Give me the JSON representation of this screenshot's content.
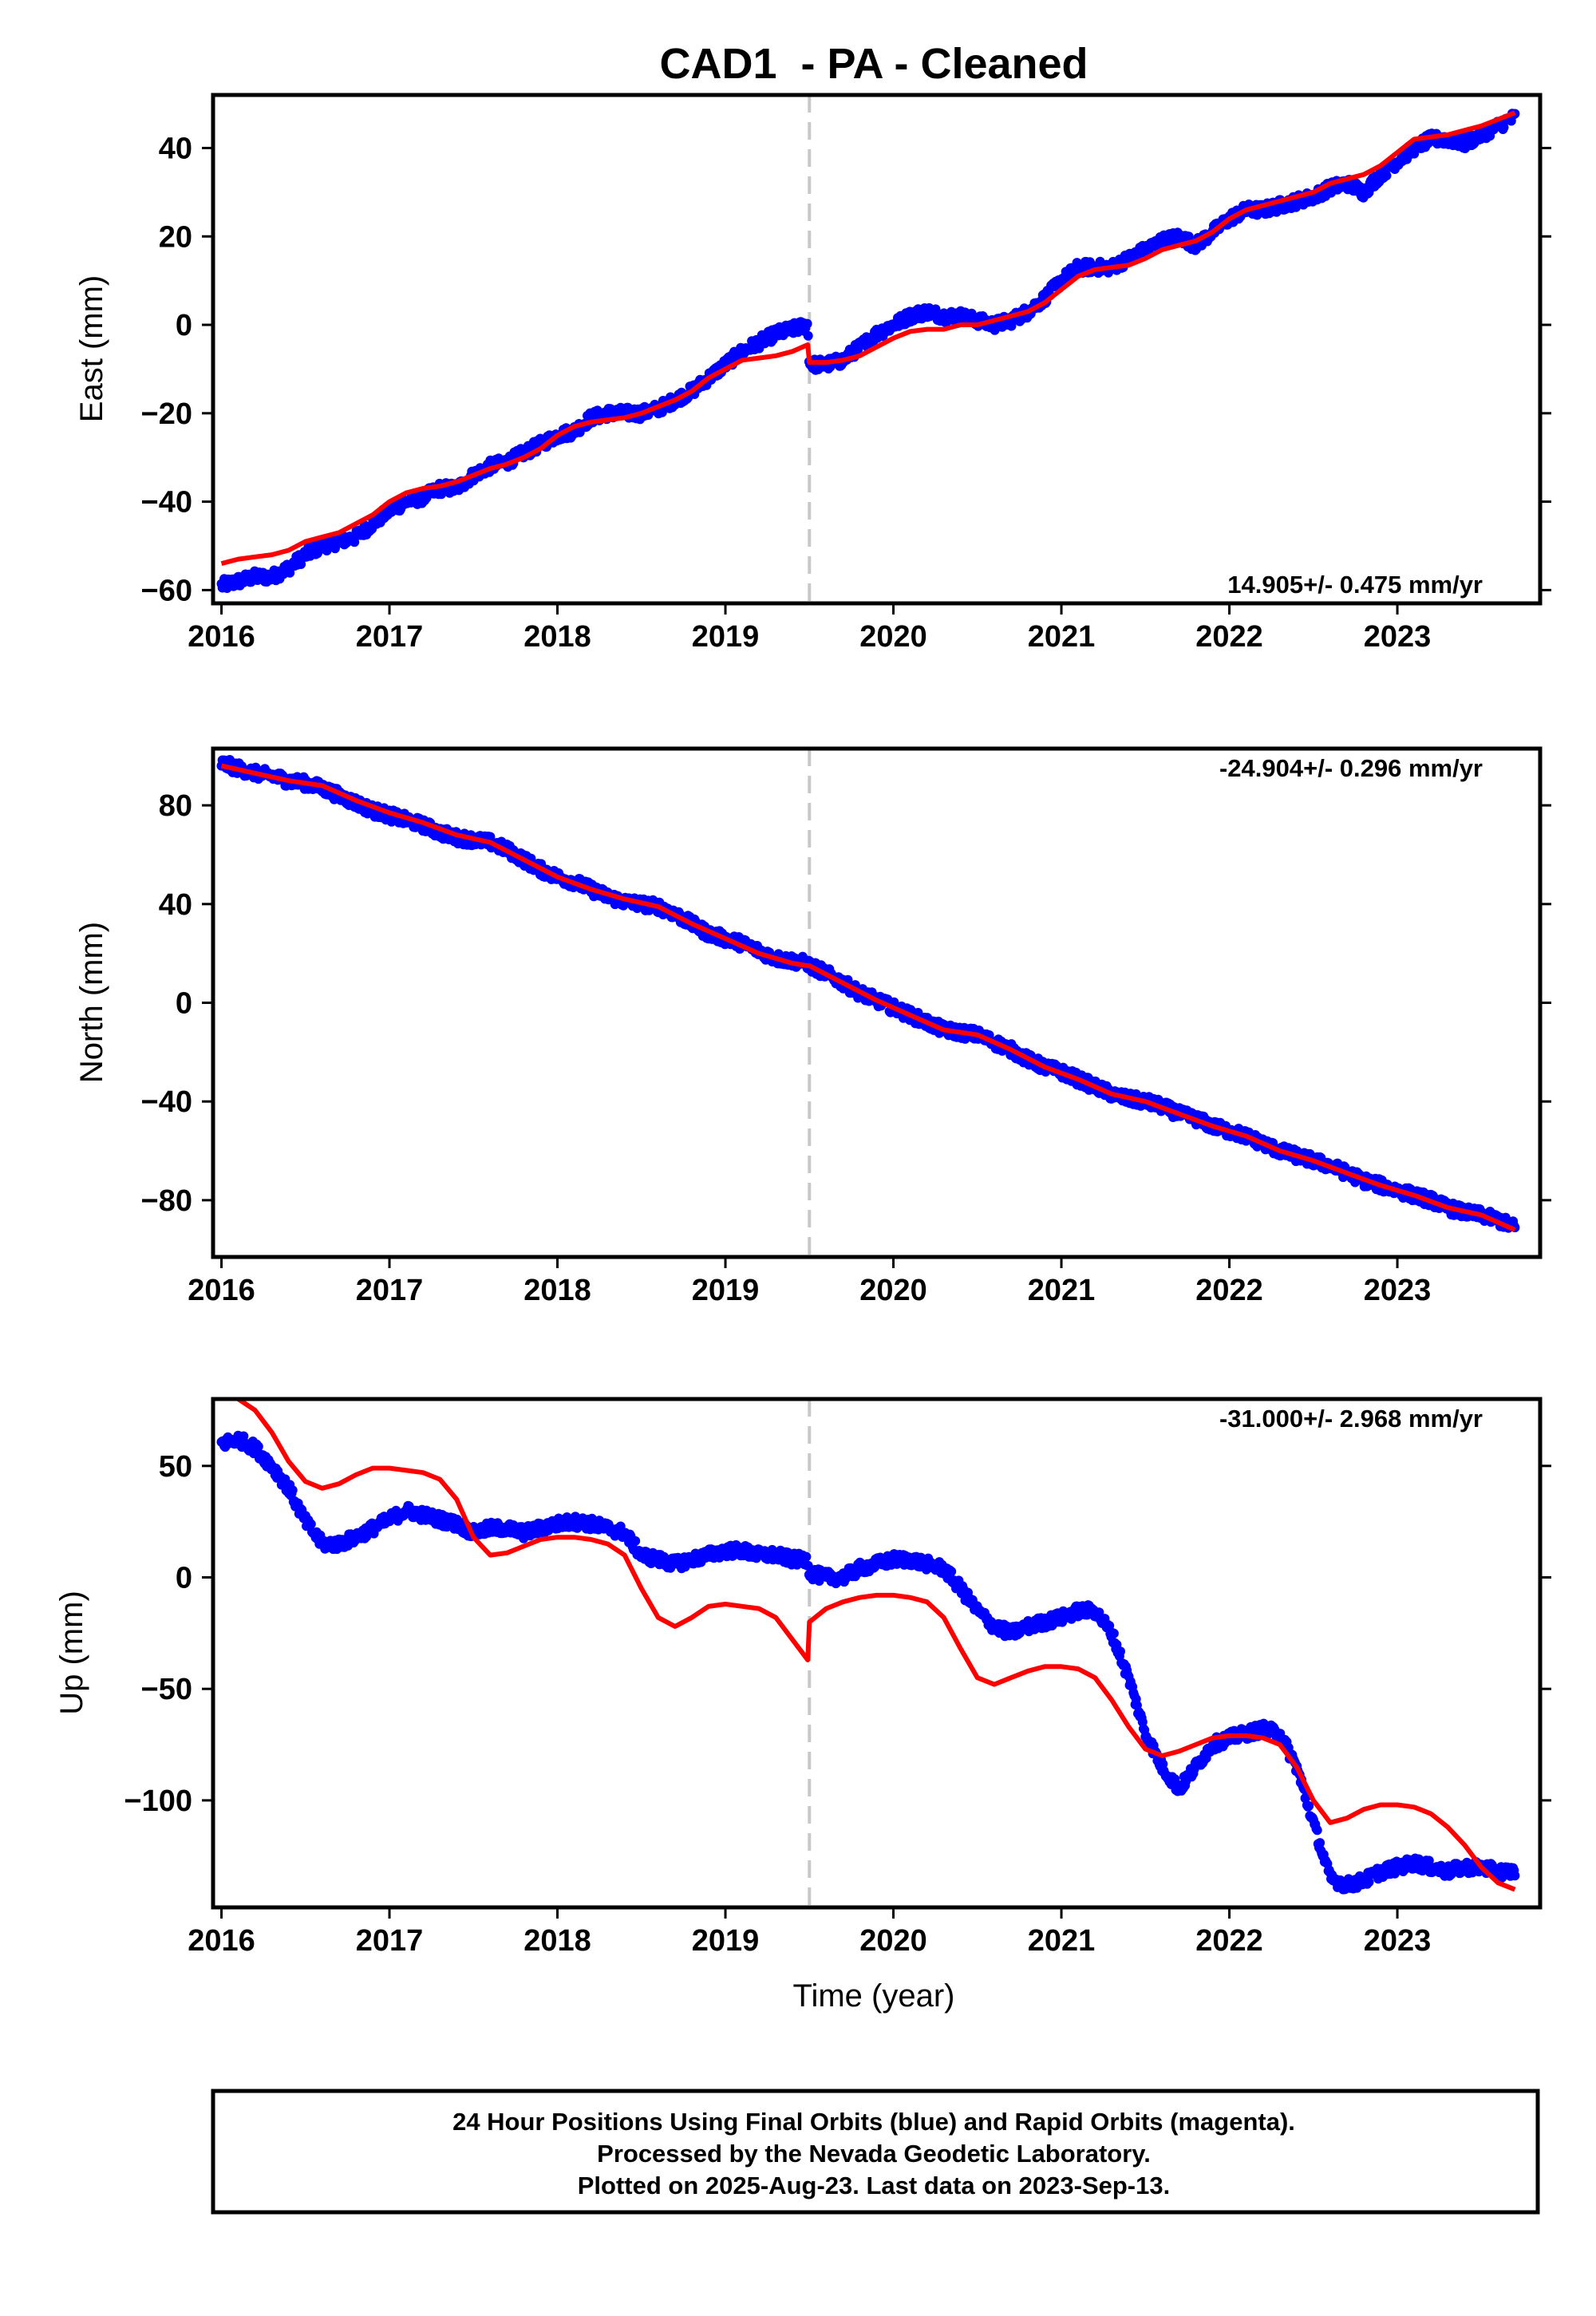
{
  "title": "CAD1  - PA - Cleaned",
  "colors": {
    "data": "#0000ff",
    "fit": "#ff0000",
    "event": "#c8c8c8",
    "frame": "#000000"
  },
  "chart_data": [
    {
      "type": "scatter",
      "ylabel": "East (mm)",
      "xlabel": "",
      "xlim": [
        2015.95,
        2023.85
      ],
      "ylim": [
        -63,
        52
      ],
      "x_ticks": [
        "2016",
        "2017",
        "2018",
        "2019",
        "2020",
        "2021",
        "2022",
        "2023"
      ],
      "y_ticks": [
        "−60",
        "−40",
        "−20",
        "0",
        "20",
        "40"
      ],
      "rate": "14.905+/- 0.475 mm/yr",
      "rate_position": "bottom-right",
      "event_line_x": 2019.5,
      "series": [
        {
          "role": "observed",
          "x": [
            2016.0,
            2016.1,
            2016.2,
            2016.3,
            2016.4,
            2016.5,
            2016.6,
            2016.7,
            2016.8,
            2016.9,
            2017.0,
            2017.1,
            2017.2,
            2017.3,
            2017.4,
            2017.5,
            2017.6,
            2017.7,
            2017.8,
            2017.9,
            2018.0,
            2018.1,
            2018.2,
            2018.3,
            2018.4,
            2018.5,
            2018.6,
            2018.7,
            2018.8,
            2018.9,
            2019.0,
            2019.1,
            2019.2,
            2019.3,
            2019.4,
            2019.49,
            2019.5,
            2019.6,
            2019.7,
            2019.8,
            2019.9,
            2020.0,
            2020.1,
            2020.2,
            2020.3,
            2020.4,
            2020.5,
            2020.6,
            2020.7,
            2020.8,
            2020.9,
            2021.0,
            2021.1,
            2021.2,
            2021.3,
            2021.4,
            2021.5,
            2021.6,
            2021.7,
            2021.8,
            2021.9,
            2022.0,
            2022.1,
            2022.2,
            2022.3,
            2022.4,
            2022.5,
            2022.6,
            2022.7,
            2022.8,
            2022.9,
            2023.0,
            2023.1,
            2023.2,
            2023.3,
            2023.4,
            2023.5,
            2023.6,
            2023.7
          ],
          "y": [
            -59,
            -58,
            -57,
            -57,
            -55,
            -52,
            -50,
            -49,
            -48,
            -45,
            -42,
            -40,
            -39,
            -37,
            -37,
            -34,
            -32,
            -31,
            -29,
            -27,
            -25,
            -24,
            -21,
            -20,
            -20,
            -20,
            -19,
            -17,
            -15,
            -12,
            -9,
            -6,
            -4,
            -2,
            -1,
            0,
            -9,
            -9,
            -8,
            -5,
            -2,
            0,
            2,
            3,
            2,
            2,
            1,
            0,
            1,
            3,
            6,
            10,
            13,
            13,
            13,
            15,
            17,
            19,
            20,
            18,
            21,
            24,
            26,
            26,
            27,
            28,
            29,
            31,
            32,
            30,
            34,
            37,
            40,
            42,
            42,
            41,
            43,
            45,
            47
          ]
        },
        {
          "role": "model",
          "x": [
            2016.0,
            2016.1,
            2016.2,
            2016.3,
            2016.4,
            2016.5,
            2016.6,
            2016.7,
            2016.8,
            2016.9,
            2017.0,
            2017.1,
            2017.2,
            2017.3,
            2017.4,
            2017.5,
            2017.6,
            2017.7,
            2017.8,
            2017.9,
            2018.0,
            2018.1,
            2018.2,
            2018.3,
            2018.4,
            2018.5,
            2018.6,
            2018.7,
            2018.8,
            2018.9,
            2019.0,
            2019.1,
            2019.2,
            2019.3,
            2019.4,
            2019.49,
            2019.5,
            2019.6,
            2019.7,
            2019.8,
            2019.9,
            2020.0,
            2020.1,
            2020.2,
            2020.3,
            2020.4,
            2020.5,
            2020.6,
            2020.7,
            2020.8,
            2020.9,
            2021.0,
            2021.1,
            2021.2,
            2021.3,
            2021.4,
            2021.5,
            2021.6,
            2021.7,
            2021.8,
            2021.9,
            2022.0,
            2022.1,
            2022.2,
            2022.3,
            2022.4,
            2022.5,
            2022.6,
            2022.7,
            2022.8,
            2022.9,
            2023.0,
            2023.1,
            2023.2,
            2023.3,
            2023.4,
            2023.5,
            2023.6,
            2023.7
          ],
          "y": [
            -54,
            -53,
            -52.5,
            -52,
            -51,
            -49,
            -48,
            -47,
            -45,
            -43,
            -40,
            -38,
            -37,
            -36.5,
            -35.5,
            -34,
            -32.5,
            -31.5,
            -30,
            -28,
            -25,
            -23,
            -22,
            -21.5,
            -21,
            -20,
            -18.5,
            -17,
            -15,
            -12,
            -10,
            -8,
            -7.5,
            -7,
            -6,
            -4.5,
            -8.5,
            -8.5,
            -8,
            -7,
            -5,
            -3,
            -1.5,
            -1,
            -1,
            0,
            0,
            1,
            2,
            3,
            5,
            8,
            11,
            12.5,
            13,
            13.5,
            15,
            17,
            18,
            19,
            21,
            24,
            26,
            27,
            28,
            29,
            30,
            32,
            33,
            34,
            36,
            39,
            42,
            42.5,
            43,
            44,
            45,
            46.5,
            48
          ]
        }
      ]
    },
    {
      "type": "scatter",
      "ylabel": "North (mm)",
      "xlabel": "",
      "xlim": [
        2015.95,
        2023.85
      ],
      "ylim": [
        -103,
        103
      ],
      "x_ticks": [
        "2016",
        "2017",
        "2018",
        "2019",
        "2020",
        "2021",
        "2022",
        "2023"
      ],
      "y_ticks": [
        "−80",
        "−40",
        "0",
        "40",
        "80"
      ],
      "rate": "-24.904+/- 0.296 mm/yr",
      "rate_position": "top-right",
      "event_line_x": 2019.5,
      "series": [
        {
          "role": "observed",
          "x": [
            2016.0,
            2016.1,
            2016.2,
            2016.3,
            2016.4,
            2016.5,
            2016.6,
            2016.7,
            2016.8,
            2016.9,
            2017.0,
            2017.1,
            2017.2,
            2017.3,
            2017.4,
            2017.5,
            2017.6,
            2017.7,
            2017.8,
            2017.9,
            2018.0,
            2018.1,
            2018.2,
            2018.3,
            2018.4,
            2018.5,
            2018.6,
            2018.7,
            2018.8,
            2018.9,
            2019.0,
            2019.1,
            2019.2,
            2019.3,
            2019.4,
            2019.49,
            2019.5,
            2019.6,
            2019.7,
            2019.8,
            2019.9,
            2020.0,
            2020.1,
            2020.2,
            2020.3,
            2020.4,
            2020.5,
            2020.6,
            2020.7,
            2020.8,
            2020.9,
            2021.0,
            2021.1,
            2021.2,
            2021.3,
            2021.4,
            2021.5,
            2021.6,
            2021.7,
            2021.8,
            2021.9,
            2022.0,
            2022.1,
            2022.2,
            2022.3,
            2022.4,
            2022.5,
            2022.6,
            2022.7,
            2022.8,
            2022.9,
            2023.0,
            2023.1,
            2023.2,
            2023.3,
            2023.4,
            2023.5,
            2023.6,
            2023.7
          ],
          "y": [
            97,
            95,
            93,
            92,
            90,
            89,
            87,
            84,
            81,
            78,
            76,
            74,
            72,
            69,
            67,
            66,
            65,
            62,
            58,
            54,
            51,
            49,
            46,
            43,
            41,
            40,
            39,
            36,
            32,
            28,
            26,
            24,
            21,
            18,
            17,
            16,
            15,
            12,
            8,
            4,
            1,
            -2,
            -5,
            -8,
            -11,
            -12,
            -13,
            -16,
            -19,
            -23,
            -26,
            -28,
            -31,
            -34,
            -37,
            -39,
            -40,
            -42,
            -45,
            -47,
            -50,
            -52,
            -54,
            -57,
            -60,
            -62,
            -64,
            -66,
            -69,
            -72,
            -74,
            -76,
            -78,
            -80,
            -83,
            -85,
            -86,
            -88,
            -91
          ]
        },
        {
          "role": "model",
          "x": [
            2016.0,
            2016.2,
            2016.4,
            2016.6,
            2016.8,
            2017.0,
            2017.2,
            2017.4,
            2017.6,
            2017.8,
            2018.0,
            2018.2,
            2018.4,
            2018.6,
            2018.8,
            2019.0,
            2019.2,
            2019.4,
            2019.49,
            2019.5,
            2019.7,
            2019.9,
            2020.1,
            2020.3,
            2020.5,
            2020.7,
            2020.9,
            2021.1,
            2021.3,
            2021.5,
            2021.7,
            2021.9,
            2022.1,
            2022.3,
            2022.5,
            2022.7,
            2022.9,
            2023.1,
            2023.3,
            2023.5,
            2023.7
          ],
          "y": [
            96,
            93,
            90,
            88,
            82,
            77,
            73,
            68,
            65,
            58,
            51,
            46,
            42,
            39,
            32,
            26,
            20,
            16,
            15,
            15,
            8,
            1,
            -5,
            -11,
            -13,
            -19,
            -26,
            -31,
            -37,
            -40,
            -45,
            -50,
            -54,
            -60,
            -64,
            -69,
            -74,
            -78,
            -83,
            -86,
            -92
          ]
        }
      ]
    },
    {
      "type": "scatter",
      "ylabel": "Up (mm)",
      "xlabel": "Time (year)",
      "xlim": [
        2015.95,
        2023.85
      ],
      "ylim": [
        -148,
        80
      ],
      "x_ticks": [
        "2016",
        "2017",
        "2018",
        "2019",
        "2020",
        "2021",
        "2022",
        "2023"
      ],
      "y_ticks": [
        "−100",
        "−50",
        "0",
        "50"
      ],
      "rate": "-31.000+/- 2.968 mm/yr",
      "rate_position": "top-right",
      "event_line_x": 2019.5,
      "series": [
        {
          "role": "observed",
          "x": [
            2016.0,
            2016.1,
            2016.2,
            2016.3,
            2016.4,
            2016.5,
            2016.6,
            2016.7,
            2016.8,
            2016.9,
            2017.0,
            2017.1,
            2017.2,
            2017.3,
            2017.4,
            2017.5,
            2017.6,
            2017.7,
            2017.8,
            2017.9,
            2018.0,
            2018.1,
            2018.2,
            2018.3,
            2018.4,
            2018.5,
            2018.6,
            2018.7,
            2018.8,
            2018.9,
            2019.0,
            2019.1,
            2019.2,
            2019.3,
            2019.4,
            2019.49,
            2019.5,
            2019.6,
            2019.7,
            2019.8,
            2019.9,
            2020.0,
            2020.1,
            2020.2,
            2020.3,
            2020.4,
            2020.5,
            2020.6,
            2020.7,
            2020.8,
            2020.9,
            2021.0,
            2021.1,
            2021.2,
            2021.3,
            2021.4,
            2021.5,
            2021.6,
            2021.7,
            2021.8,
            2021.9,
            2022.0,
            2022.1,
            2022.2,
            2022.3,
            2022.4,
            2022.5,
            2022.6,
            2022.7,
            2022.8,
            2022.9,
            2023.0,
            2023.1,
            2023.2,
            2023.3,
            2023.4,
            2023.5,
            2023.6,
            2023.7
          ],
          "y": [
            60,
            62,
            58,
            50,
            40,
            25,
            15,
            15,
            18,
            22,
            26,
            30,
            28,
            26,
            24,
            20,
            22,
            22,
            20,
            22,
            24,
            25,
            24,
            22,
            20,
            10,
            8,
            6,
            8,
            10,
            12,
            12,
            10,
            10,
            8,
            8,
            2,
            0,
            0,
            4,
            6,
            8,
            8,
            6,
            4,
            -5,
            -15,
            -22,
            -25,
            -22,
            -20,
            -18,
            -15,
            -15,
            -25,
            -45,
            -70,
            -85,
            -95,
            -85,
            -75,
            -72,
            -70,
            -68,
            -70,
            -85,
            -110,
            -135,
            -138,
            -136,
            -132,
            -130,
            -128,
            -130,
            -132,
            -130,
            -130,
            -132,
            -132
          ]
        },
        {
          "role": "model",
          "x": [
            2016.0,
            2016.1,
            2016.2,
            2016.3,
            2016.4,
            2016.5,
            2016.6,
            2016.7,
            2016.8,
            2016.9,
            2017.0,
            2017.1,
            2017.2,
            2017.3,
            2017.4,
            2017.5,
            2017.6,
            2017.7,
            2017.8,
            2017.9,
            2018.0,
            2018.1,
            2018.2,
            2018.3,
            2018.4,
            2018.5,
            2018.6,
            2018.7,
            2018.8,
            2018.9,
            2019.0,
            2019.1,
            2019.2,
            2019.3,
            2019.4,
            2019.49,
            2019.5,
            2019.6,
            2019.7,
            2019.8,
            2019.9,
            2020.0,
            2020.1,
            2020.2,
            2020.3,
            2020.4,
            2020.5,
            2020.6,
            2020.7,
            2020.8,
            2020.9,
            2021.0,
            2021.1,
            2021.2,
            2021.3,
            2021.4,
            2021.5,
            2021.6,
            2021.7,
            2021.8,
            2021.9,
            2022.0,
            2022.1,
            2022.2,
            2022.3,
            2022.4,
            2022.5,
            2022.6,
            2022.7,
            2022.8,
            2022.9,
            2023.0,
            2023.1,
            2023.2,
            2023.3,
            2023.4,
            2023.5,
            2023.6,
            2023.7
          ],
          "y": [
            82,
            80,
            75,
            65,
            52,
            43,
            40,
            42,
            46,
            49,
            49,
            48,
            47,
            44,
            35,
            18,
            10,
            11,
            14,
            17,
            18,
            18,
            17,
            15,
            10,
            -5,
            -18,
            -22,
            -18,
            -13,
            -12,
            -13,
            -14,
            -18,
            -28,
            -37,
            -20,
            -14,
            -11,
            -9,
            -8,
            -8,
            -9,
            -11,
            -18,
            -32,
            -45,
            -48,
            -45,
            -42,
            -40,
            -40,
            -41,
            -45,
            -55,
            -67,
            -77,
            -80,
            -78,
            -75,
            -72,
            -71,
            -71,
            -72,
            -75,
            -85,
            -100,
            -110,
            -108,
            -104,
            -102,
            -102,
            -103,
            -106,
            -112,
            -120,
            -130,
            -137,
            -140
          ]
        }
      ]
    }
  ],
  "footer": {
    "line1": "24 Hour Positions Using Final Orbits (blue) and Rapid Orbits (magenta).",
    "line2": "Processed by the Nevada Geodetic Laboratory.",
    "line3": "Plotted on 2025-Aug-23. Last data on 2023-Sep-13."
  }
}
